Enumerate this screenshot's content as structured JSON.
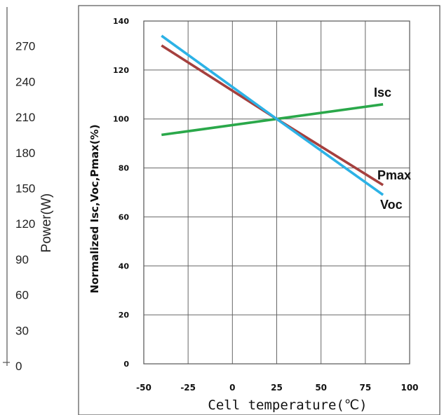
{
  "left_axis": {
    "label": "Power(W)",
    "ticks": [
      "0",
      "30",
      "60",
      "90",
      "120",
      "150",
      "180",
      "210",
      "240",
      "270"
    ]
  },
  "chart_data": {
    "type": "line",
    "title": "",
    "xlabel": "Cell temperature(℃)",
    "ylabel": "Normalized Isc,Voc,Pmax(%)",
    "xlim": [
      -50,
      100
    ],
    "ylim": [
      0,
      140
    ],
    "x_ticks": [
      "-50",
      "-25",
      "0",
      "25",
      "50",
      "75",
      "100"
    ],
    "y_ticks": [
      "0",
      "20",
      "40",
      "60",
      "80",
      "100",
      "120",
      "140"
    ],
    "grid": true,
    "series": [
      {
        "name": "Isc",
        "color": "#2aa84a",
        "x": [
          -40,
          25,
          85
        ],
        "y": [
          93.5,
          100,
          106
        ]
      },
      {
        "name": "Pmax",
        "color": "#a5403e",
        "x": [
          -40,
          25,
          85
        ],
        "y": [
          130,
          100,
          73
        ]
      },
      {
        "name": "Voc",
        "color": "#2cb2e6",
        "x": [
          -40,
          25,
          85
        ],
        "y": [
          134,
          100,
          69
        ]
      }
    ]
  }
}
